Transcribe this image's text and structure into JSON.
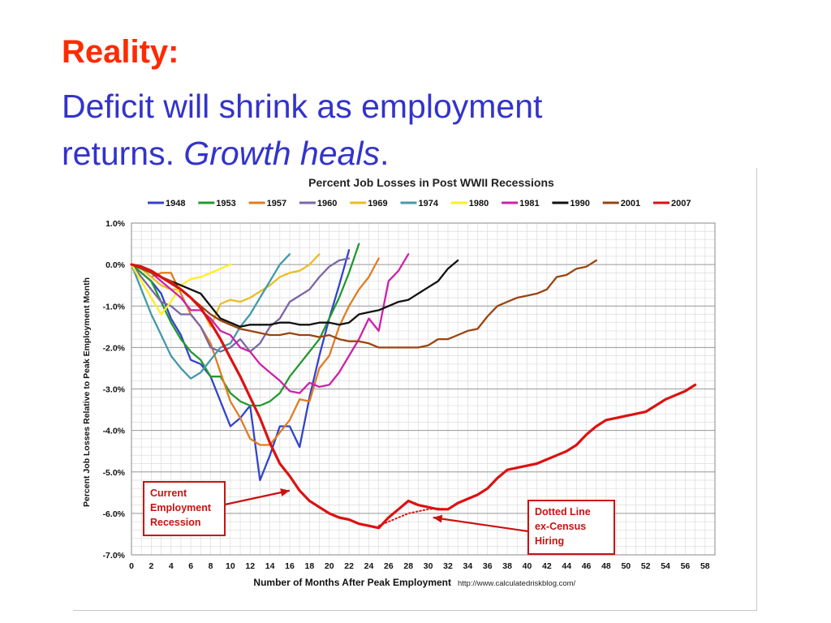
{
  "slide": {
    "title": "Reality:",
    "subtitle_line1": "Deficit will shrink as employment",
    "subtitle_line2_prefix": "returns. ",
    "subtitle_line2_italic": "Growth heals",
    "subtitle_line2_suffix": ".",
    "title_color": "#ff2a00",
    "subtitle_color": "#3333cc"
  },
  "chart_data": {
    "type": "line",
    "title": "Percent Job Losses in Post WWII Recessions",
    "xlabel": "Number of Months After Peak Employment",
    "ylabel": "Percent Job Losses Relative to Peak Employment Month",
    "source": "http://www.calculatedriskblog.com/",
    "xlim": [
      0,
      59
    ],
    "ylim": [
      -7.0,
      1.0
    ],
    "x_ticks": [
      0,
      2,
      4,
      6,
      8,
      10,
      12,
      14,
      16,
      18,
      20,
      22,
      24,
      26,
      28,
      30,
      32,
      34,
      36,
      38,
      40,
      42,
      44,
      46,
      48,
      50,
      52,
      54,
      56,
      58
    ],
    "y_ticks": [
      1.0,
      0.0,
      -1.0,
      -2.0,
      -3.0,
      -4.0,
      -5.0,
      -6.0,
      -7.0
    ],
    "y_tick_labels": [
      "1.0%",
      "0.0%",
      "-1.0%",
      "-2.0%",
      "-3.0%",
      "-4.0%",
      "-5.0%",
      "-6.0%",
      "-7.0%"
    ],
    "grid": true,
    "legend_position": "top",
    "series": [
      {
        "name": "1948",
        "color": "#3344cc",
        "y": [
          0,
          -0.2,
          -0.4,
          -0.7,
          -1.3,
          -1.7,
          -2.3,
          -2.4,
          -2.7,
          -3.3,
          -3.9,
          -3.7,
          -3.4,
          -5.2,
          -4.6,
          -3.9,
          -3.9,
          -4.4,
          -3.2,
          -2.2,
          -1.3,
          -0.5,
          0.35
        ]
      },
      {
        "name": "1953",
        "color": "#22992e",
        "y": [
          0,
          -0.2,
          -0.4,
          -0.9,
          -1.4,
          -1.8,
          -2.1,
          -2.3,
          -2.7,
          -2.7,
          -3.1,
          -3.3,
          -3.4,
          -3.4,
          -3.3,
          -3.1,
          -2.7,
          -2.4,
          -2.1,
          -1.8,
          -1.3,
          -0.8,
          -0.2,
          0.5
        ]
      },
      {
        "name": "1957",
        "color": "#e07c22",
        "y": [
          0,
          -0.1,
          -0.3,
          -0.2,
          -0.2,
          -0.7,
          -1.2,
          -1.5,
          -1.9,
          -2.6,
          -3.3,
          -3.7,
          -4.2,
          -4.35,
          -4.35,
          -4.05,
          -3.75,
          -3.25,
          -3.3,
          -2.5,
          -2.2,
          -1.5,
          -1.0,
          -0.6,
          -0.3,
          0.15
        ]
      },
      {
        "name": "1960",
        "color": "#7a66a6",
        "y": [
          0,
          -0.3,
          -0.6,
          -0.9,
          -1.0,
          -1.2,
          -1.2,
          -1.5,
          -2.0,
          -2.1,
          -2.0,
          -1.8,
          -2.1,
          -1.9,
          -1.5,
          -1.3,
          -0.9,
          -0.75,
          -0.6,
          -0.3,
          -0.05,
          0.1,
          0.15
        ]
      },
      {
        "name": "1969",
        "color": "#eebb22",
        "y": [
          0,
          -0.1,
          -0.3,
          -0.5,
          -0.6,
          -0.6,
          -0.8,
          -1.0,
          -1.5,
          -0.95,
          -0.85,
          -0.9,
          -0.8,
          -0.65,
          -0.5,
          -0.3,
          -0.2,
          -0.15,
          0.0,
          0.25
        ]
      },
      {
        "name": "1974",
        "color": "#4499aa",
        "y": [
          0,
          -0.6,
          -1.2,
          -1.7,
          -2.2,
          -2.5,
          -2.75,
          -2.6,
          -2.3,
          -2.0,
          -1.9,
          -1.5,
          -1.2,
          -0.8,
          -0.4,
          0.0,
          0.25
        ]
      },
      {
        "name": "1980",
        "color": "#ffee22",
        "y": [
          0,
          -0.4,
          -0.8,
          -1.2,
          -0.9,
          -0.5,
          -0.35,
          -0.3,
          -0.2,
          -0.1,
          0.0
        ]
      },
      {
        "name": "1981",
        "color": "#cc22aa",
        "y": [
          0,
          -0.1,
          -0.2,
          -0.4,
          -0.6,
          -0.8,
          -1.1,
          -1.1,
          -1.3,
          -1.6,
          -1.7,
          -2.0,
          -2.1,
          -2.4,
          -2.6,
          -2.8,
          -3.05,
          -3.1,
          -2.85,
          -2.95,
          -2.9,
          -2.6,
          -2.2,
          -1.8,
          -1.3,
          -1.6,
          -0.4,
          -0.15,
          0.25
        ]
      },
      {
        "name": "1990",
        "color": "#111111",
        "y": [
          0,
          -0.1,
          -0.2,
          -0.3,
          -0.4,
          -0.5,
          -0.6,
          -0.7,
          -1.0,
          -1.3,
          -1.4,
          -1.5,
          -1.45,
          -1.45,
          -1.45,
          -1.4,
          -1.4,
          -1.45,
          -1.45,
          -1.4,
          -1.4,
          -1.45,
          -1.4,
          -1.2,
          -1.15,
          -1.1,
          -1.0,
          -0.9,
          -0.85,
          -0.7,
          -0.55,
          -0.4,
          -0.1,
          0.1
        ]
      },
      {
        "name": "2001",
        "color": "#994411",
        "y": [
          0,
          -0.1,
          -0.2,
          -0.3,
          -0.4,
          -0.6,
          -0.8,
          -1.0,
          -1.2,
          -1.35,
          -1.45,
          -1.55,
          -1.6,
          -1.65,
          -1.7,
          -1.7,
          -1.65,
          -1.7,
          -1.7,
          -1.75,
          -1.7,
          -1.8,
          -1.85,
          -1.85,
          -1.9,
          -2.0,
          -2.0,
          -2.0,
          -2.0,
          -2.0,
          -1.95,
          -1.8,
          -1.8,
          -1.7,
          -1.6,
          -1.55,
          -1.25,
          -1.0,
          -0.9,
          -0.8,
          -0.75,
          -0.7,
          -0.6,
          -0.3,
          -0.25,
          -0.1,
          -0.05,
          0.1
        ]
      },
      {
        "name": "2007",
        "color": "#dd1111",
        "y": [
          0,
          -0.05,
          -0.15,
          -0.3,
          -0.45,
          -0.6,
          -0.8,
          -1.05,
          -1.4,
          -1.8,
          -2.25,
          -2.7,
          -3.2,
          -3.7,
          -4.3,
          -4.8,
          -5.1,
          -5.45,
          -5.7,
          -5.85,
          -6.0,
          -6.1,
          -6.15,
          -6.25,
          -6.3,
          -6.35,
          -6.1,
          -5.9,
          -5.7,
          -5.8,
          -5.85,
          -5.9,
          -5.9,
          -5.75,
          -5.65,
          -5.55,
          -5.4,
          -5.15,
          -4.95,
          -4.9,
          -4.85,
          -4.8,
          -4.7,
          -4.6,
          -4.5,
          -4.35,
          -4.1,
          -3.9,
          -3.75,
          -3.7,
          -3.65,
          -3.6,
          -3.55,
          -3.4,
          -3.25,
          -3.15,
          -3.05,
          -2.9
        ]
      },
      {
        "name": "2007 dotted ex-Census",
        "legend": false,
        "dotted": true,
        "color": "#dd1111",
        "x_start": 25,
        "y": [
          -6.3,
          -6.2,
          -6.1,
          -6.0,
          -5.95,
          -5.9,
          -5.88,
          -5.9
        ]
      }
    ],
    "annotations": [
      {
        "id": "current-employment",
        "lines": [
          "Current",
          "Employment",
          "Recession"
        ],
        "color": "#cc1111",
        "arrow_to": [
          16,
          -5.45
        ]
      },
      {
        "id": "dotted-line",
        "lines": [
          "Dotted  Line",
          "ex-Census",
          "Hiring"
        ],
        "color": "#cc1111",
        "arrow_to": [
          30.5,
          -6.1
        ]
      }
    ]
  }
}
